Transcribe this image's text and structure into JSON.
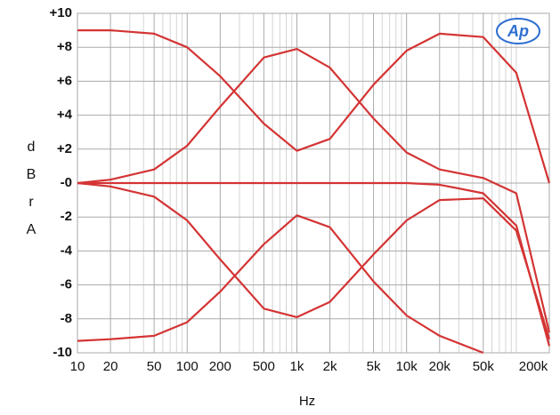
{
  "chart_data": {
    "type": "line",
    "xlabel": "Hz",
    "ylabel": "dBrA",
    "logo": "Ap",
    "xscale": "log",
    "grid": true,
    "xlim": [
      10,
      200000
    ],
    "ylim": [
      -10,
      10
    ],
    "xticks": [
      10,
      20,
      50,
      100,
      200,
      500,
      {
        "value": 1000,
        "label": "1k"
      },
      {
        "value": 2000,
        "label": "2k"
      },
      {
        "value": 5000,
        "label": "5k"
      },
      {
        "value": 10000,
        "label": "10k"
      },
      {
        "value": 20000,
        "label": "20k"
      },
      {
        "value": 50000,
        "label": "50k"
      },
      {
        "value": 200000,
        "label": "200k"
      }
    ],
    "xminorticks": [
      30,
      40,
      60,
      70,
      80,
      90,
      300,
      400,
      600,
      700,
      800,
      900,
      3000,
      4000,
      6000,
      7000,
      8000,
      9000,
      30000,
      40000,
      60000,
      70000,
      80000,
      90000,
      100000
    ],
    "yticks": [
      {
        "value": 10,
        "label": "+10"
      },
      {
        "value": 8,
        "label": "+8"
      },
      {
        "value": 6,
        "label": "+6"
      },
      {
        "value": 4,
        "label": "+4"
      },
      {
        "value": 2,
        "label": "+2"
      },
      {
        "value": 0,
        "label": "-0"
      },
      -2,
      -4,
      -6,
      -8,
      -10
    ],
    "x": [
      10,
      20,
      50,
      100,
      200,
      500,
      1000,
      2000,
      5000,
      10000,
      20000,
      50000,
      100000,
      200000
    ],
    "series": [
      {
        "color": "#d43434",
        "values": [
          9,
          9,
          8.8,
          8,
          6.3,
          3.5,
          1.9,
          2.6,
          5.8,
          7.8,
          8.8,
          8.6,
          6.5,
          0
        ]
      },
      {
        "color": "#d43434",
        "values": [
          0,
          0.2,
          0.8,
          2.2,
          4.5,
          7.4,
          7.9,
          6.8,
          3.8,
          1.8,
          0.8,
          0.3,
          -0.6,
          -8.8
        ]
      },
      {
        "color": "#d43434",
        "values": [
          0,
          0,
          0,
          0,
          0,
          0,
          0,
          0,
          0,
          0,
          -0.1,
          -0.6,
          -2.5,
          -9.6
        ]
      },
      {
        "color": "#d43434",
        "values": [
          0,
          -0.2,
          -0.8,
          -2.2,
          -4.5,
          -7.4,
          -7.9,
          -7,
          -4.2,
          -2.2,
          -1,
          -0.9,
          -2.8,
          -9.2
        ]
      },
      {
        "color": "#d43434",
        "values": [
          -9.3,
          -9.2,
          -9,
          -8.2,
          -6.4,
          -3.6,
          -1.9,
          -2.6,
          -5.8,
          -7.8,
          -9,
          -10,
          null,
          null
        ]
      }
    ]
  }
}
